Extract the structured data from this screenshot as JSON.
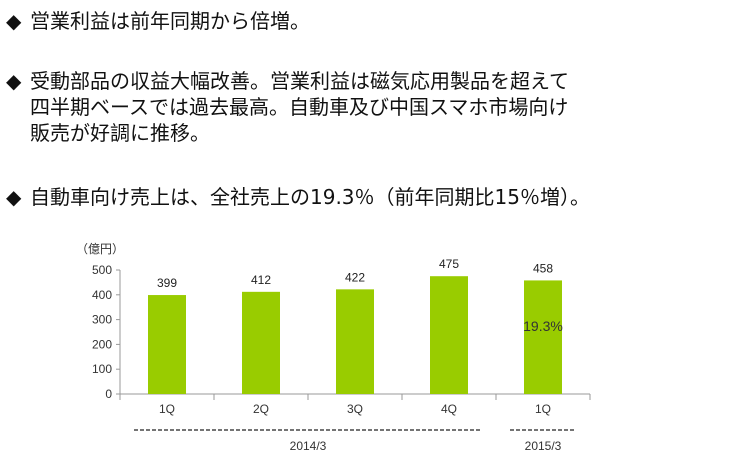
{
  "bullets": [
    {
      "marker": "◆",
      "lines": [
        "営業利益は前年同期から倍増。"
      ]
    },
    {
      "marker": "◆",
      "lines": [
        "受動部品の収益大幅改善。営業利益は磁気応用製品を超えて",
        "四半期ベースでは過去最高。自動車及び中国スマホ市場向け",
        "販売が好調に推移。"
      ]
    },
    {
      "marker": "◆",
      "lines": [
        "自動車向け売上は、全社売上の19.3％（前年同期比15％増）。"
      ]
    }
  ],
  "chart_data": {
    "type": "bar",
    "unit_label": "（億円）",
    "categories": [
      "1Q",
      "2Q",
      "3Q",
      "4Q",
      "1Q"
    ],
    "values": [
      399,
      412,
      422,
      475,
      458
    ],
    "data_labels": [
      "399",
      "412",
      "422",
      "475",
      "458"
    ],
    "bar_annotation": {
      "index": 4,
      "text": "19.3%"
    },
    "yticks": [
      "0",
      "100",
      "200",
      "300",
      "400",
      "500"
    ],
    "ylim": [
      0,
      500
    ],
    "year_groups": [
      {
        "label": "2014/3",
        "span": [
          0,
          3
        ]
      },
      {
        "label": "2015/3",
        "span": [
          4,
          4
        ]
      }
    ],
    "bar_color": "#99cc00",
    "grid": false
  }
}
